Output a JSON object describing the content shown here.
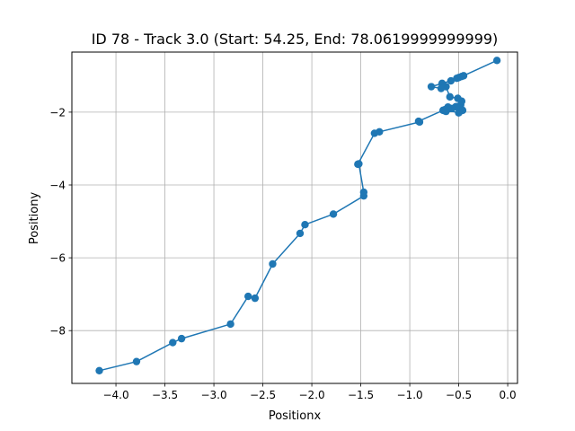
{
  "chart_data": {
    "type": "line",
    "title": "ID 78 - Track 3.0 (Start: 54.25, End: 78.0619999999999)",
    "xlabel": "Positionx",
    "ylabel": "Positiony",
    "xlim": [
      -4.45,
      0.1
    ],
    "ylim": [
      -9.45,
      -0.35
    ],
    "xticks": [
      -4.0,
      -3.5,
      -3.0,
      -2.5,
      -2.0,
      -1.5,
      -1.0,
      -0.5,
      0.0
    ],
    "xtick_labels": [
      "−4.0",
      "−3.5",
      "−3.0",
      "−2.5",
      "−2.0",
      "−1.5",
      "−1.0",
      "−0.5",
      "0.0"
    ],
    "yticks": [
      -8,
      -6,
      -4,
      -2
    ],
    "ytick_labels": [
      "−8",
      "−6",
      "−4",
      "−2"
    ],
    "grid": true,
    "marker": "circle",
    "color": "#1f77b4",
    "series": [
      {
        "x": [
          -4.17,
          -3.79,
          -3.42,
          -3.33,
          -2.83,
          -2.65,
          -2.58,
          -2.4,
          -2.12,
          -2.07,
          -1.78,
          -1.47,
          -1.47,
          -1.52,
          -1.53,
          -1.36,
          -1.31,
          -0.9,
          -0.91,
          -0.66,
          -0.63,
          -0.59,
          -0.52,
          -0.48,
          -0.46,
          -0.53,
          -0.57,
          -0.61,
          -0.64,
          -0.5,
          -0.47,
          -0.51,
          -0.59,
          -0.63,
          -0.67,
          -0.68,
          -0.78,
          -0.58,
          -0.52,
          -0.5,
          -0.47,
          -0.45,
          -0.11
        ],
        "y": [
          -9.1,
          -8.85,
          -8.33,
          -8.22,
          -7.82,
          -7.06,
          -7.11,
          -6.17,
          -5.33,
          -5.09,
          -4.8,
          -4.3,
          -4.2,
          -3.42,
          -3.43,
          -2.58,
          -2.54,
          -2.27,
          -2.25,
          -1.95,
          -1.98,
          -1.9,
          -1.85,
          -1.8,
          -1.95,
          -1.85,
          -1.9,
          -1.86,
          -1.93,
          -2.02,
          -1.7,
          -1.62,
          -1.58,
          -1.3,
          -1.21,
          -1.35,
          -1.3,
          -1.14,
          -1.07,
          -1.05,
          -1.02,
          -1.0,
          -0.58
        ]
      }
    ]
  }
}
